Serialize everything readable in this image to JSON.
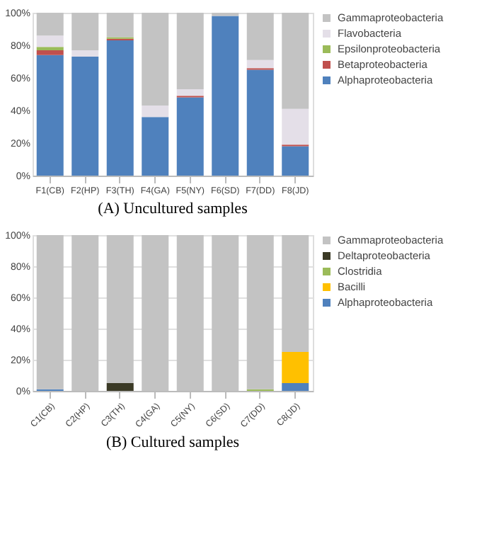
{
  "chart_data": [
    {
      "type": "bar",
      "stacked": true,
      "title": "(A) Uncultured samples",
      "categories": [
        "F1(CB)",
        "F2(HP)",
        "F3(TH)",
        "F4(GA)",
        "F5(NY)",
        "F6(SD)",
        "F7(DD)",
        "F8(JD)"
      ],
      "series": [
        {
          "name": "Alphaproteobacteria",
          "color": "#4f81bd",
          "values": [
            74,
            73,
            83,
            36,
            48,
            98,
            65,
            18
          ]
        },
        {
          "name": "Betaproteobacteria",
          "color": "#c0504d",
          "values": [
            3,
            0,
            1,
            0,
            1,
            0,
            1,
            1
          ]
        },
        {
          "name": "Epsilonproteobacteria",
          "color": "#9bbb59",
          "values": [
            2,
            0,
            1,
            0,
            0,
            0,
            0,
            0
          ]
        },
        {
          "name": "Flavobacteria",
          "color": "#e4dfe8",
          "values": [
            7,
            4,
            0,
            7,
            4,
            0,
            5,
            22
          ]
        },
        {
          "name": "Gammaproteobacteria",
          "color": "#c3c3c3",
          "values": [
            14,
            23,
            15,
            57,
            47,
            2,
            29,
            59
          ]
        }
      ],
      "ylim": [
        0,
        100
      ],
      "yticks": [
        {
          "value": 0,
          "label": "0%"
        },
        {
          "value": 20,
          "label": "20%"
        },
        {
          "value": 40,
          "label": "40%"
        },
        {
          "value": 60,
          "label": "60%"
        },
        {
          "value": 80,
          "label": "80%"
        },
        {
          "value": 100,
          "label": "100%"
        }
      ],
      "legend": "right",
      "grid": false
    },
    {
      "type": "bar",
      "stacked": true,
      "title": "(B) Cultured samples",
      "categories": [
        "C1(CB)",
        "C2(HP)",
        "C3(TH)",
        "C4(GA)",
        "C5(NY)",
        "C6(SD)",
        "C7(DD)",
        "C8(JD)"
      ],
      "series": [
        {
          "name": "Alphaproteobacteria",
          "color": "#4f81bd",
          "values": [
            1,
            0,
            0,
            0,
            0,
            0,
            0,
            5
          ]
        },
        {
          "name": "Bacilli",
          "color": "#ffc000",
          "values": [
            0,
            0,
            0,
            0,
            0,
            0,
            0,
            20
          ]
        },
        {
          "name": "Clostridia",
          "color": "#9bbb59",
          "values": [
            0,
            0,
            0,
            0,
            0,
            0,
            1,
            0
          ]
        },
        {
          "name": "Deltaproteobacteria",
          "color": "#3b3a26",
          "values": [
            0,
            0,
            5,
            0,
            0,
            0,
            0,
            0
          ]
        },
        {
          "name": "Gammaproteobacteria",
          "color": "#c3c3c3",
          "values": [
            99,
            100,
            95,
            100,
            100,
            100,
            99,
            75
          ]
        }
      ],
      "ylim": [
        0,
        100
      ],
      "yticks": [
        {
          "value": 0,
          "label": "0%"
        },
        {
          "value": 20,
          "label": "20%"
        },
        {
          "value": 40,
          "label": "40%"
        },
        {
          "value": 60,
          "label": "60%"
        },
        {
          "value": 80,
          "label": "80%"
        },
        {
          "value": 100,
          "label": "100%"
        }
      ],
      "legend": "right",
      "grid": "y"
    }
  ]
}
